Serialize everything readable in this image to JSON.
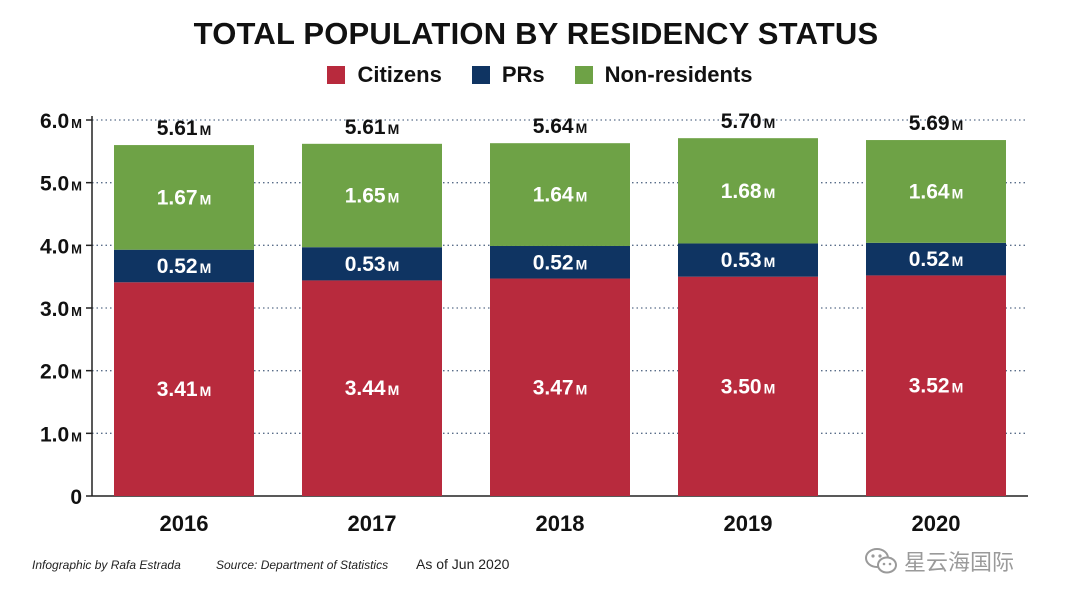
{
  "chart_data": {
    "type": "bar",
    "stacked": true,
    "title": "TOTAL POPULATION BY RESIDENCY STATUS",
    "categories": [
      "2016",
      "2017",
      "2018",
      "2019",
      "2020"
    ],
    "series": [
      {
        "name": "Citizens",
        "color": "#b82a3d",
        "values": [
          3.41,
          3.44,
          3.47,
          3.5,
          3.52
        ],
        "labels": [
          "3.41",
          "3.44",
          "3.47",
          "3.50",
          "3.52"
        ]
      },
      {
        "name": "PRs",
        "color": "#0f3462",
        "values": [
          0.52,
          0.53,
          0.52,
          0.53,
          0.52
        ],
        "labels": [
          "0.52",
          "0.53",
          "0.52",
          "0.53",
          "0.52"
        ]
      },
      {
        "name": "Non-residents",
        "color": "#6ea246",
        "values": [
          1.67,
          1.65,
          1.64,
          1.68,
          1.64
        ],
        "labels": [
          "1.67",
          "1.65",
          "1.64",
          "1.68",
          "1.64"
        ]
      }
    ],
    "totals": [
      "5.61",
      "5.61",
      "5.64",
      "5.70",
      "5.69"
    ],
    "unit_suffix": "M",
    "ylim": [
      0,
      6
    ],
    "yticks": [
      {
        "value": 6,
        "label": "6.0",
        "suffix": "M"
      },
      {
        "value": 5,
        "label": "5.0",
        "suffix": "M"
      },
      {
        "value": 4,
        "label": "4.0",
        "suffix": "M"
      },
      {
        "value": 3,
        "label": "3.0",
        "suffix": "M"
      },
      {
        "value": 2,
        "label": "2.0",
        "suffix": "M"
      },
      {
        "value": 1,
        "label": "1.0",
        "suffix": "M"
      },
      {
        "value": 0,
        "label": "0",
        "suffix": ""
      }
    ],
    "grid": "dotted",
    "xlabel": "",
    "ylabel": ""
  },
  "footer": {
    "credit": "Infographic by Rafa Estrada",
    "source": "Source: Department of Statistics",
    "as_of": "As of Jun 2020"
  },
  "watermark": {
    "text": "星云海国际",
    "icon": "wechat-icon"
  }
}
